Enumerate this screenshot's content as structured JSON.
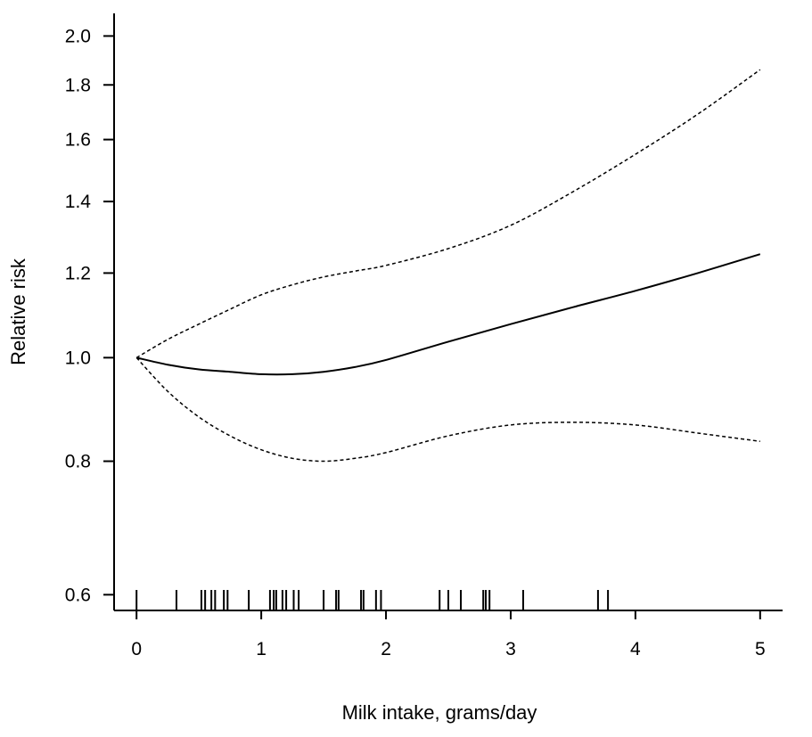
{
  "chart_data": {
    "type": "line",
    "title": "",
    "xlabel": "Milk intake, grams/day",
    "ylabel": "Relative risk",
    "x_ticks": [
      0,
      1,
      2,
      3,
      4,
      5
    ],
    "x_tick_labels": [
      "0",
      "1",
      "2",
      "3",
      "4",
      "5"
    ],
    "y_scale": "log",
    "y_ticks": [
      0.6,
      0.8,
      1.0,
      1.2,
      1.4,
      1.6,
      1.8,
      2.0
    ],
    "y_tick_labels": [
      "0.6",
      "0.8",
      "1.0",
      "1.2",
      "1.4",
      "1.6",
      "1.8",
      "2.0"
    ],
    "xlim": [
      -0.18,
      5.18
    ],
    "ylim": [
      0.58,
      2.1
    ],
    "grid": false,
    "series": [
      {
        "style": "solid",
        "x": [
          0,
          0.25,
          0.5,
          0.75,
          1.0,
          1.25,
          1.5,
          1.75,
          2.0,
          2.5,
          3.0,
          3.5,
          4.0,
          4.5,
          5.0
        ],
        "y": [
          1.0,
          0.985,
          0.975,
          0.97,
          0.965,
          0.965,
          0.97,
          0.98,
          0.995,
          1.035,
          1.075,
          1.115,
          1.155,
          1.2,
          1.25
        ]
      },
      {
        "style": "dashed",
        "x": [
          0,
          0.25,
          0.5,
          0.75,
          1.0,
          1.25,
          1.5,
          1.75,
          2.0,
          2.5,
          3.0,
          3.5,
          4.0,
          4.5,
          5.0
        ],
        "y": [
          1.0,
          1.04,
          1.075,
          1.11,
          1.145,
          1.17,
          1.19,
          1.205,
          1.22,
          1.265,
          1.33,
          1.43,
          1.55,
          1.69,
          1.86
        ]
      },
      {
        "style": "dashed",
        "x": [
          0,
          0.25,
          0.5,
          0.75,
          1.0,
          1.25,
          1.5,
          1.75,
          2.0,
          2.5,
          3.0,
          3.5,
          4.0,
          4.5,
          5.0
        ],
        "y": [
          1.0,
          0.93,
          0.88,
          0.845,
          0.82,
          0.805,
          0.8,
          0.805,
          0.815,
          0.845,
          0.865,
          0.87,
          0.865,
          0.85,
          0.835
        ]
      }
    ],
    "rug": [
      0,
      0.32,
      0.52,
      0.55,
      0.6,
      0.63,
      0.7,
      0.73,
      0.9,
      1.07,
      1.1,
      1.12,
      1.17,
      1.2,
      1.26,
      1.3,
      1.5,
      1.6,
      1.62,
      1.8,
      1.82,
      1.92,
      1.96,
      2.43,
      2.5,
      2.6,
      2.78,
      2.8,
      2.83,
      3.1,
      3.7,
      3.78
    ]
  }
}
